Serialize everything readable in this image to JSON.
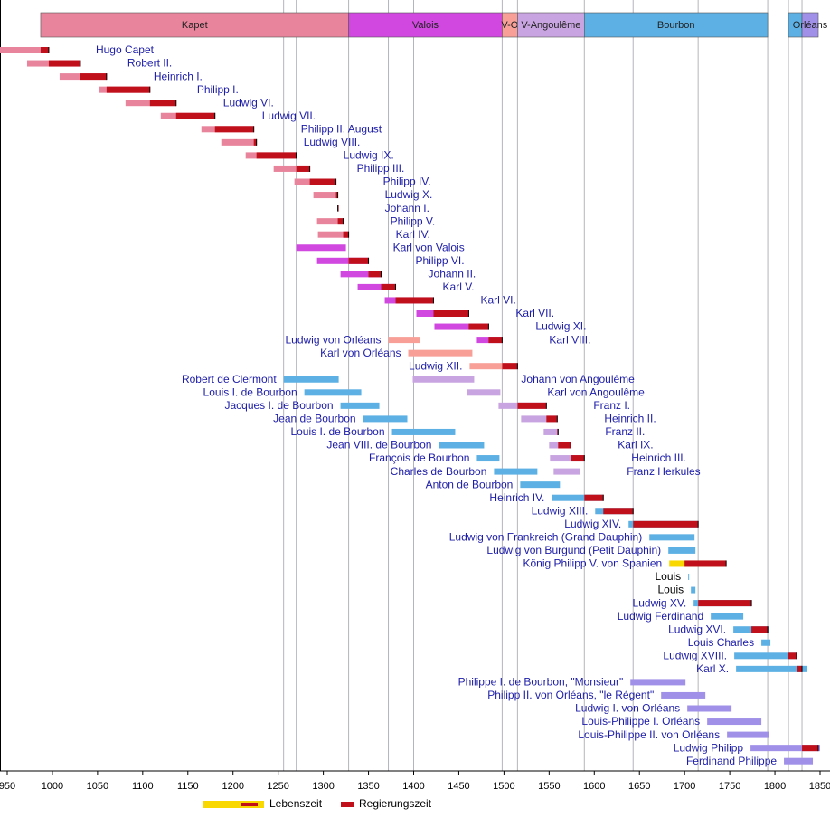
{
  "chart_data": {
    "type": "timeline",
    "xlim": [
      942,
      1861
    ],
    "xticks": [
      950,
      1000,
      1050,
      1100,
      1150,
      1200,
      1250,
      1300,
      1350,
      1400,
      1450,
      1500,
      1550,
      1600,
      1650,
      1700,
      1750,
      1800,
      1850
    ],
    "reference_lines": [
      1256,
      1270,
      1328,
      1372,
      1400,
      1498,
      1515,
      1589,
      1643,
      1715,
      1792,
      1815,
      1830
    ],
    "reign_color": "#c0101c",
    "dynasties": [
      {
        "name": "Kapet",
        "start": 987,
        "end": 1328,
        "color": "#e8849c"
      },
      {
        "name": "Valois",
        "start": 1328,
        "end": 1498,
        "color": "#d048e0"
      },
      {
        "name": "V-O",
        "start": 1498,
        "end": 1515,
        "color": "#f8a098"
      },
      {
        "name": "V-Angoulême",
        "start": 1515,
        "end": 1589,
        "color": "#c8a4e0"
      },
      {
        "name": "Bourbon",
        "start": 1589,
        "end": 1792,
        "color": "#5cb0e4"
      },
      {
        "name": null,
        "start": 1815,
        "end": 1830,
        "color": "#5cb0e4"
      },
      {
        "name": "Orléans",
        "start": 1830,
        "end": 1848,
        "color": "#a090e8"
      }
    ],
    "rows": [
      [
        {
          "name": "Hugo Capet",
          "life": [
            940,
            996
          ],
          "reign": [
            987,
            996
          ],
          "color": "#e8849c"
        }
      ],
      [
        {
          "name": "Robert II.",
          "life": [
            972,
            1031
          ],
          "reign": [
            996,
            1031
          ],
          "color": "#e8849c"
        }
      ],
      [
        {
          "name": "Heinrich I.",
          "life": [
            1008,
            1060
          ],
          "reign": [
            1031,
            1060
          ],
          "color": "#e8849c"
        }
      ],
      [
        {
          "name": "Philipp I.",
          "life": [
            1052,
            1108
          ],
          "reign": [
            1060,
            1108
          ],
          "color": "#e8849c"
        }
      ],
      [
        {
          "name": "Ludwig VI.",
          "life": [
            1081,
            1137
          ],
          "reign": [
            1108,
            1137
          ],
          "color": "#e8849c"
        }
      ],
      [
        {
          "name": "Ludwig VII.",
          "life": [
            1120,
            1180
          ],
          "reign": [
            1137,
            1180
          ],
          "color": "#e8849c"
        }
      ],
      [
        {
          "name": "Philipp II. August",
          "life": [
            1165,
            1223
          ],
          "reign": [
            1180,
            1223
          ],
          "color": "#e8849c"
        }
      ],
      [
        {
          "name": "Ludwig VIII.",
          "life": [
            1187,
            1226
          ],
          "reign": [
            1223,
            1226
          ],
          "color": "#e8849c"
        }
      ],
      [
        {
          "name": "Ludwig IX.",
          "life": [
            1214,
            1270
          ],
          "reign": [
            1226,
            1270
          ],
          "color": "#e8849c"
        }
      ],
      [
        {
          "name": "Philipp III.",
          "life": [
            1245,
            1285
          ],
          "reign": [
            1270,
            1285
          ],
          "color": "#e8849c"
        }
      ],
      [
        {
          "name": "Philipp IV.",
          "life": [
            1268,
            1314
          ],
          "reign": [
            1285,
            1314
          ],
          "color": "#e8849c"
        }
      ],
      [
        {
          "name": "Ludwig X.",
          "life": [
            1289,
            1316
          ],
          "reign": [
            1314,
            1316
          ],
          "color": "#e8849c"
        }
      ],
      [
        {
          "name": "Johann I.",
          "life": [
            1316,
            1316
          ],
          "reign": [
            1316,
            1316
          ],
          "color": "#e8849c"
        }
      ],
      [
        {
          "name": "Philipp V.",
          "life": [
            1293,
            1322
          ],
          "reign": [
            1316,
            1322
          ],
          "color": "#e8849c"
        }
      ],
      [
        {
          "name": "Karl IV.",
          "life": [
            1294,
            1328
          ],
          "reign": [
            1322,
            1328
          ],
          "color": "#e8849c"
        }
      ],
      [
        {
          "name": "Karl von Valois",
          "life": [
            1270,
            1325
          ],
          "reign": null,
          "color": "#d048e0"
        }
      ],
      [
        {
          "name": "Philipp VI.",
          "life": [
            1293,
            1350
          ],
          "reign": [
            1328,
            1350
          ],
          "color": "#d048e0"
        }
      ],
      [
        {
          "name": "Johann II.",
          "life": [
            1319,
            1364
          ],
          "reign": [
            1350,
            1364
          ],
          "color": "#d048e0"
        }
      ],
      [
        {
          "name": "Karl V.",
          "life": [
            1338,
            1380
          ],
          "reign": [
            1364,
            1380
          ],
          "color": "#d048e0"
        }
      ],
      [
        {
          "name": "Karl VI.",
          "life": [
            1368,
            1422
          ],
          "reign": [
            1380,
            1422
          ],
          "color": "#d048e0"
        }
      ],
      [
        {
          "name": "Karl VII.",
          "life": [
            1403,
            1461
          ],
          "reign": [
            1422,
            1461
          ],
          "color": "#d048e0"
        }
      ],
      [
        {
          "name": "Ludwig XI.",
          "life": [
            1423,
            1483
          ],
          "reign": [
            1461,
            1483
          ],
          "color": "#d048e0"
        }
      ],
      [
        {
          "name": "Ludwig von Orléans",
          "life": [
            1372,
            1407
          ],
          "reign": null,
          "color": "#f8a098"
        },
        {
          "name": "Karl VIII.",
          "life": [
            1470,
            1498
          ],
          "reign": [
            1483,
            1498
          ],
          "color": "#d048e0"
        }
      ],
      [
        {
          "name": "Karl von Orléans",
          "life": [
            1394,
            1465
          ],
          "reign": null,
          "color": "#f8a098"
        }
      ],
      [
        {
          "name": "Ludwig XII.",
          "life": [
            1462,
            1515
          ],
          "reign": [
            1498,
            1515
          ],
          "color": "#f8a098"
        }
      ],
      [
        {
          "name": "Robert de Clermont",
          "life": [
            1256,
            1317
          ],
          "reign": null,
          "color": "#5cb0e4"
        },
        {
          "name": "Johann von Angoulême",
          "life": [
            1399,
            1467
          ],
          "reign": null,
          "color": "#c8a4e0"
        }
      ],
      [
        {
          "name": "Louis I. de Bourbon",
          "life": [
            1279,
            1342
          ],
          "reign": null,
          "color": "#5cb0e4"
        },
        {
          "name": "Karl von Angoulême",
          "life": [
            1459,
            1496
          ],
          "reign": null,
          "color": "#c8a4e0"
        }
      ],
      [
        {
          "name": "Jacques I. de Bourbon",
          "life": [
            1319,
            1362
          ],
          "reign": null,
          "color": "#5cb0e4"
        },
        {
          "name": "Franz I.",
          "life": [
            1494,
            1547
          ],
          "reign": [
            1515,
            1547
          ],
          "color": "#c8a4e0"
        }
      ],
      [
        {
          "name": "Jean de Bourbon",
          "life": [
            1344,
            1393
          ],
          "reign": null,
          "color": "#5cb0e4"
        },
        {
          "name": "Heinrich II.",
          "life": [
            1519,
            1559
          ],
          "reign": [
            1547,
            1559
          ],
          "color": "#c8a4e0"
        }
      ],
      [
        {
          "name": "Louis I. de Bourbon",
          "life": [
            1376,
            1446
          ],
          "reign": null,
          "color": "#5cb0e4"
        },
        {
          "name": "Franz II.",
          "life": [
            1544,
            1560
          ],
          "reign": [
            1559,
            1560
          ],
          "color": "#c8a4e0"
        }
      ],
      [
        {
          "name": "Jean VIII. de Bourbon",
          "life": [
            1428,
            1478
          ],
          "reign": null,
          "color": "#5cb0e4"
        },
        {
          "name": "Karl IX.",
          "life": [
            1550,
            1574
          ],
          "reign": [
            1560,
            1574
          ],
          "color": "#c8a4e0"
        }
      ],
      [
        {
          "name": "François de Bourbon",
          "life": [
            1470,
            1495
          ],
          "reign": null,
          "color": "#5cb0e4"
        },
        {
          "name": "Heinrich III.",
          "life": [
            1551,
            1589
          ],
          "reign": [
            1574,
            1589
          ],
          "color": "#c8a4e0"
        }
      ],
      [
        {
          "name": "Charles de Bourbon",
          "life": [
            1489,
            1537
          ],
          "reign": null,
          "color": "#5cb0e4"
        },
        {
          "name": "Franz Herkules",
          "life": [
            1555,
            1584
          ],
          "reign": null,
          "color": "#c8a4e0"
        }
      ],
      [
        {
          "name": "Anton de Bourbon",
          "life": [
            1518,
            1562
          ],
          "reign": null,
          "color": "#5cb0e4"
        }
      ],
      [
        {
          "name": "Heinrich IV.",
          "life": [
            1553,
            1610
          ],
          "reign": [
            1589,
            1610
          ],
          "color": "#5cb0e4"
        }
      ],
      [
        {
          "name": "Ludwig XIII.",
          "life": [
            1601,
            1643
          ],
          "reign": [
            1610,
            1643
          ],
          "color": "#5cb0e4"
        }
      ],
      [
        {
          "name": "Ludwig XIV.",
          "life": [
            1638,
            1715
          ],
          "reign": [
            1643,
            1715
          ],
          "color": "#5cb0e4"
        }
      ],
      [
        {
          "name": "Ludwig von Frankreich (Grand Dauphin)",
          "life": [
            1661,
            1711
          ],
          "reign": null,
          "color": "#5cb0e4"
        }
      ],
      [
        {
          "name": "Ludwig von Burgund (Petit Dauphin)",
          "life": [
            1682,
            1712
          ],
          "reign": null,
          "color": "#5cb0e4"
        }
      ],
      [
        {
          "name": "König Philipp V. von Spanien",
          "life": [
            1683,
            1746
          ],
          "reign": [
            1700,
            1746
          ],
          "color": "#f8d800"
        }
      ],
      [
        {
          "name": "Louis",
          "life": [
            1704,
            1705
          ],
          "reign": null,
          "color": "#5cb0e4",
          "link": false
        }
      ],
      [
        {
          "name": "Louis",
          "life": [
            1707,
            1712
          ],
          "reign": null,
          "color": "#5cb0e4",
          "link": false
        }
      ],
      [
        {
          "name": "Ludwig XV.",
          "life": [
            1710,
            1774
          ],
          "reign": [
            1715,
            1774
          ],
          "color": "#5cb0e4"
        }
      ],
      [
        {
          "name": "Ludwig Ferdinand",
          "life": [
            1729,
            1765
          ],
          "reign": null,
          "color": "#5cb0e4"
        }
      ],
      [
        {
          "name": "Ludwig XVI.",
          "life": [
            1754,
            1793
          ],
          "reign": [
            1774,
            1792
          ],
          "color": "#5cb0e4"
        }
      ],
      [
        {
          "name": "Louis Charles",
          "life": [
            1785,
            1795
          ],
          "reign": null,
          "color": "#5cb0e4"
        }
      ],
      [
        {
          "name": "Ludwig XVIII.",
          "life": [
            1755,
            1824
          ],
          "reign": [
            1814,
            1824
          ],
          "color": "#5cb0e4"
        }
      ],
      [
        {
          "name": "Karl X.",
          "life": [
            1757,
            1836
          ],
          "reign": [
            1824,
            1830
          ],
          "color": "#5cb0e4"
        }
      ],
      [
        {
          "name": "Philippe I. de Bourbon, \"Monsieur\"",
          "life": [
            1640,
            1701
          ],
          "reign": null,
          "color": "#a090e8"
        }
      ],
      [
        {
          "name": "Philipp II. von Orléans, \"le Régent\"",
          "life": [
            1674,
            1723
          ],
          "reign": null,
          "color": "#a090e8"
        }
      ],
      [
        {
          "name": "Ludwig I. von Orléans",
          "life": [
            1703,
            1752
          ],
          "reign": null,
          "color": "#a090e8"
        }
      ],
      [
        {
          "name": "Louis-Philippe I. Orléans",
          "life": [
            1725,
            1785
          ],
          "reign": null,
          "color": "#a090e8"
        }
      ],
      [
        {
          "name": "Louis-Philippe II. von Orléans",
          "life": [
            1747,
            1793
          ],
          "reign": null,
          "color": "#a090e8"
        }
      ],
      [
        {
          "name": "Ludwig Philipp",
          "life": [
            1773,
            1850
          ],
          "reign": [
            1830,
            1848
          ],
          "color": "#a090e8"
        }
      ],
      [
        {
          "name": "Ferdinand Philippe",
          "life": [
            1810,
            1842
          ],
          "reign": null,
          "color": "#a090e8"
        }
      ]
    ],
    "legend": [
      {
        "label": "Lebenszeit",
        "color": "#f8d800"
      },
      {
        "label": "Regierungszeit",
        "color": "#c0101c"
      }
    ]
  }
}
